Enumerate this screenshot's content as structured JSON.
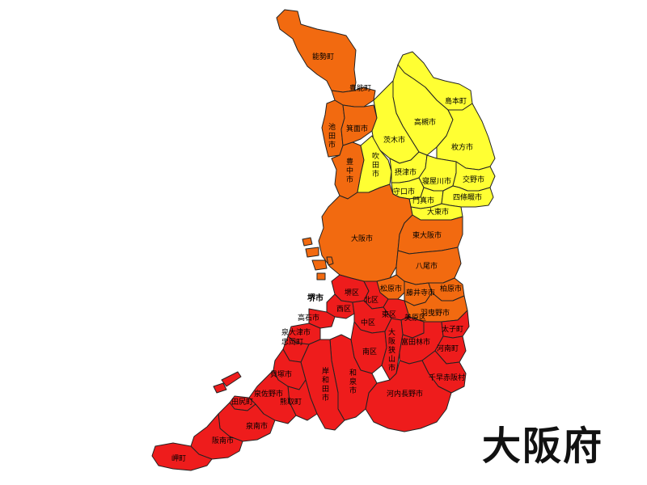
{
  "title": "大阪府",
  "colors": {
    "orange": "#f26a10",
    "yellow": "#ffff33",
    "red": "#ee1c1c"
  },
  "labels": {
    "nose": "能勢町",
    "toyono": "豊能町",
    "ikeda": "池\n田\n市",
    "mino": "箕面市",
    "toyonaka": "豊\n中\n市",
    "suita": "吹\n田\n市",
    "shimamoto": "島本町",
    "takatsuki": "高槻市",
    "ibaraki": "茨木市",
    "hirakata": "枚方市",
    "settsu": "摂津市",
    "neyagawa": "寝屋川市",
    "katano": "交野市",
    "moriguchi": "守口市",
    "kadoma": "門真市",
    "shijonawate": "四條畷市",
    "daito": "大東市",
    "osaka": "大阪市",
    "higashiosaka": "東大阪市",
    "yao": "八尾市",
    "matsubara": "松原市",
    "fujiidera": "藤井寺市",
    "kashiwara": "柏原市",
    "habikino": "羽曳野市",
    "sakai": "堺市",
    "sakai_ku": "堺区",
    "kita_ku": "北区",
    "higashi_ku": "東区",
    "nishi_ku": "西区",
    "naka_ku": "中区",
    "mihara_ku": "美原区",
    "minami_ku": "南区",
    "takaishi": "高石市",
    "izumiotsu": "泉大津市",
    "tadaoka": "忠岡町",
    "kishiwada": "岸\n和\n田\n市",
    "izumi": "和\n泉\n市",
    "osakasayama": "大\n阪\n狭\n山\n市",
    "tondabayashi": "富田林市",
    "taishi": "太子町",
    "kanan": "河南町",
    "chihayaakasaka": "千早赤阪村",
    "kawachinagano": "河内長野市",
    "kaizuka": "貝塚市",
    "izumisano": "泉佐野市",
    "kumatori": "熊取町",
    "tajiri": "田尻町",
    "sennan": "泉南市",
    "hannan": "阪南市",
    "misaki": "岬町"
  }
}
